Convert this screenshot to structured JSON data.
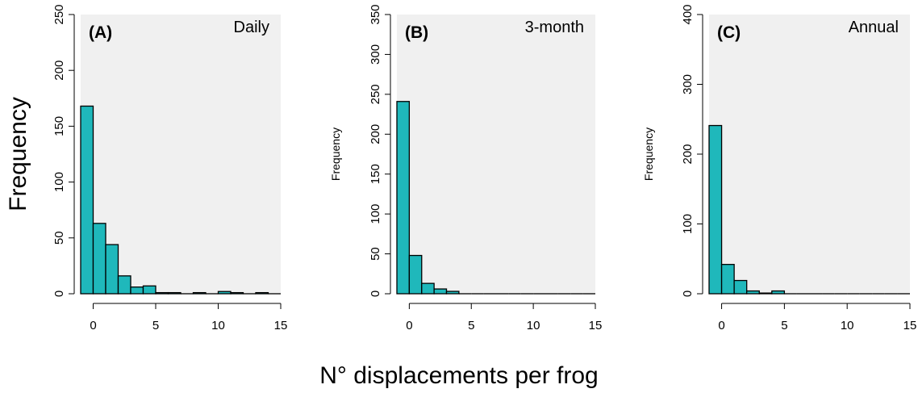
{
  "figure": {
    "shared_ylabel": "Frequency",
    "shared_xlabel": "N° displacements per frog"
  },
  "colors": {
    "bar_fill": "#1fb8bb",
    "panel_bg": "#f0f0f0",
    "axis": "#000000"
  },
  "chart_data": [
    {
      "type": "bar",
      "panel_label": "(A)",
      "title": "Daily",
      "ylabel": "",
      "xlim": [
        -1,
        15
      ],
      "ylim": [
        0,
        250
      ],
      "x_ticks": [
        0,
        5,
        10,
        15
      ],
      "y_ticks": [
        0,
        50,
        100,
        150,
        200,
        250
      ],
      "bin_edges": [
        -1,
        0,
        1,
        2,
        3,
        4,
        5,
        6,
        7,
        8,
        9,
        10,
        11,
        12,
        13,
        14,
        15
      ],
      "values": [
        168,
        63,
        44,
        16,
        6,
        7,
        1,
        1,
        0,
        1,
        0,
        2,
        1,
        0,
        1,
        0
      ],
      "grid": false
    },
    {
      "type": "bar",
      "panel_label": "(B)",
      "title": "3-month",
      "ylabel": "Frequency",
      "xlim": [
        -1,
        15
      ],
      "ylim": [
        0,
        350
      ],
      "x_ticks": [
        0,
        5,
        10,
        15
      ],
      "y_ticks": [
        0,
        50,
        100,
        150,
        200,
        250,
        300,
        350
      ],
      "bin_edges": [
        -1,
        0,
        1,
        2,
        3,
        4,
        5,
        6,
        7,
        8,
        9,
        10,
        11,
        12,
        13,
        14,
        15
      ],
      "values": [
        241,
        48,
        13,
        6,
        3,
        0,
        0,
        0,
        0,
        0,
        0,
        0,
        0,
        0,
        0,
        0
      ],
      "grid": false
    },
    {
      "type": "bar",
      "panel_label": "(C)",
      "title": "Annual",
      "ylabel": "Frequency",
      "xlim": [
        -1,
        15
      ],
      "ylim": [
        0,
        400
      ],
      "x_ticks": [
        0,
        5,
        10,
        15
      ],
      "y_ticks": [
        0,
        100,
        200,
        300,
        400
      ],
      "bin_edges": [
        -1,
        0,
        1,
        2,
        3,
        4,
        5,
        6,
        7,
        8,
        9,
        10,
        11,
        12,
        13,
        14,
        15
      ],
      "values": [
        241,
        42,
        19,
        4,
        1,
        4,
        0,
        0,
        0,
        0,
        0,
        0,
        0,
        0,
        0,
        0
      ],
      "grid": false
    }
  ]
}
